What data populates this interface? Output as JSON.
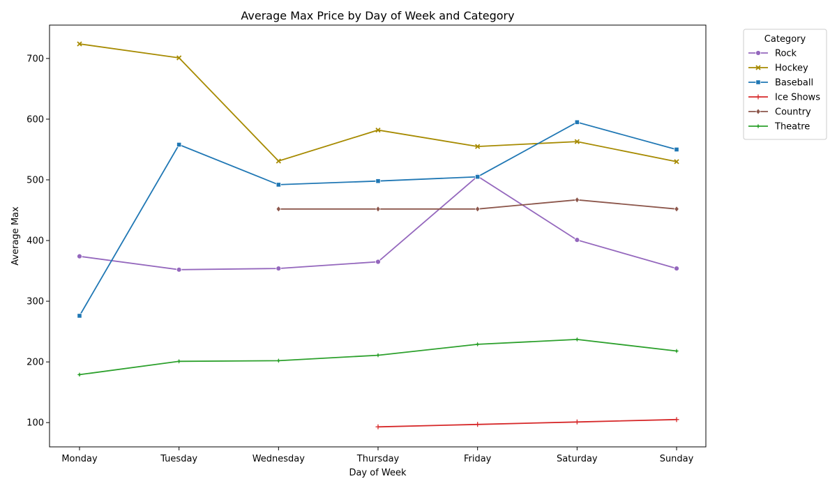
{
  "chart_data": {
    "type": "line",
    "title": "Average Max Price by Day of Week and Category",
    "xlabel": "Day of Week",
    "ylabel": "Average Max",
    "categories": [
      "Monday",
      "Tuesday",
      "Wednesday",
      "Thursday",
      "Friday",
      "Saturday",
      "Sunday"
    ],
    "ylim": [
      60,
      755
    ],
    "yticks": [
      100,
      200,
      300,
      400,
      500,
      600,
      700
    ],
    "grid": false,
    "legend": {
      "title": "Category",
      "placement": "outside-top-right"
    },
    "series": [
      {
        "name": "Rock",
        "color": "#9467bd",
        "marker": "circle",
        "values": [
          374,
          352,
          354,
          365,
          506,
          401,
          354
        ]
      },
      {
        "name": "Hockey",
        "color": "#a68a00",
        "marker": "x",
        "values": [
          724,
          701,
          531,
          582,
          555,
          563,
          530
        ]
      },
      {
        "name": "Baseball",
        "color": "#1f77b4",
        "marker": "square",
        "values": [
          276,
          558,
          492,
          498,
          505,
          595,
          550
        ]
      },
      {
        "name": "Ice Shows",
        "color": "#d62728",
        "marker": "plus",
        "values": [
          null,
          null,
          null,
          93,
          97,
          101,
          105
        ]
      },
      {
        "name": "Country",
        "color": "#8c564b",
        "marker": "diamond",
        "values": [
          null,
          null,
          452,
          452,
          452,
          467,
          452
        ]
      },
      {
        "name": "Theatre",
        "color": "#2ca02c",
        "marker": "star",
        "values": [
          179,
          201,
          202,
          211,
          229,
          237,
          218
        ]
      }
    ]
  }
}
